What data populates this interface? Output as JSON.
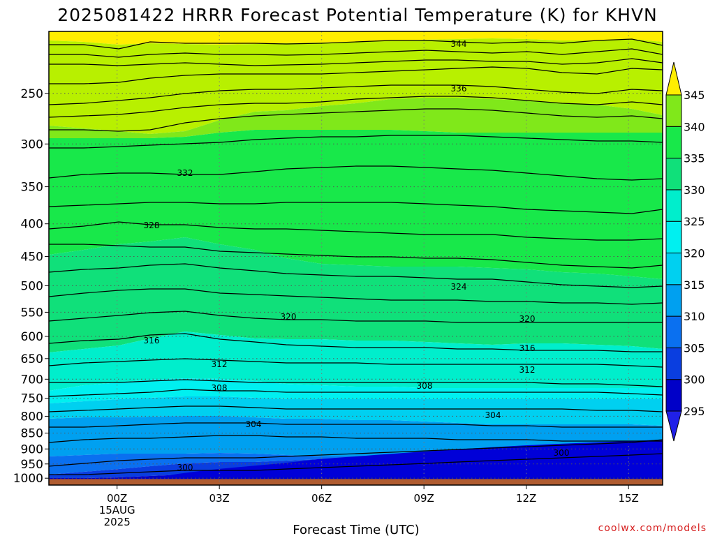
{
  "chart_data": {
    "type": "area",
    "title": "2025081422 HRRR Forecast Potential Temperature (K) for KHVN",
    "xlabel": "Forecast Time (UTC)",
    "ylabel": "",
    "credit": "coolwx.com/models",
    "x_ticks": [
      {
        "label": "00Z",
        "sub": [
          "15AUG",
          "2025"
        ]
      },
      {
        "label": "03Z",
        "sub": []
      },
      {
        "label": "06Z",
        "sub": []
      },
      {
        "label": "09Z",
        "sub": []
      },
      {
        "label": "12Z",
        "sub": []
      },
      {
        "label": "15Z",
        "sub": []
      }
    ],
    "x_hours": [
      0,
      3,
      6,
      9,
      12,
      15
    ],
    "xlim_hours": [
      -2,
      16
    ],
    "y_ticks": [
      250,
      300,
      350,
      400,
      450,
      500,
      550,
      600,
      650,
      700,
      750,
      800,
      850,
      900,
      950,
      1000
    ],
    "y_scale": "log-pressure (hPa)",
    "ylim_hpa": [
      200,
      1025
    ],
    "colorbar": {
      "levels": [
        295,
        300,
        305,
        310,
        315,
        320,
        325,
        330,
        335,
        340,
        345
      ],
      "colors": [
        "#2020e8",
        "#0000c8",
        "#0a3ee0",
        "#0a70f0",
        "#00a0f0",
        "#00d0f0",
        "#00f0f0",
        "#00eecc",
        "#10e07a",
        "#18e84a",
        "#80e81a",
        "#b8f000",
        "#ffee00"
      ]
    },
    "ground_color": "#b05c30",
    "contour_labels": [
      "344",
      "336",
      "332",
      "328",
      "324",
      "320",
      "320",
      "316",
      "316",
      "312",
      "312",
      "308",
      "308",
      "304",
      "304",
      "300",
      "300"
    ]
  }
}
